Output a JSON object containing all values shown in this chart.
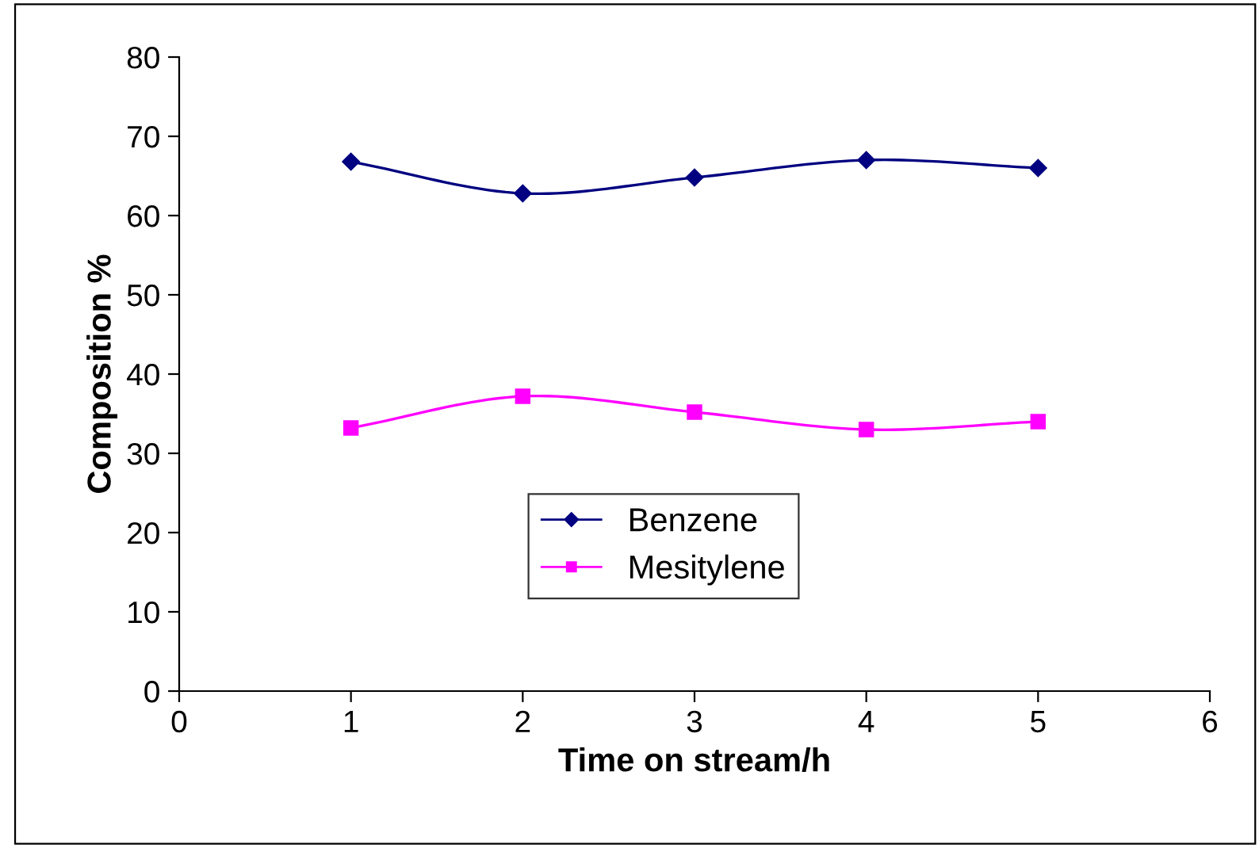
{
  "chart_data": {
    "type": "line",
    "xlabel": "Time on stream/h",
    "ylabel": "Composition %",
    "x": [
      1,
      2,
      3,
      4,
      5
    ],
    "series": [
      {
        "name": "Benzene",
        "color": "#000080",
        "marker": "diamond",
        "values": [
          66.8,
          62.8,
          64.8,
          67,
          66
        ]
      },
      {
        "name": "Mesitylene",
        "color": "#ff00ff",
        "marker": "square",
        "values": [
          33.2,
          37.2,
          35.2,
          33,
          34
        ]
      }
    ],
    "xlim": [
      0,
      6
    ],
    "xticks": [
      0,
      1,
      2,
      3,
      4,
      5,
      6
    ],
    "ylim": [
      0,
      80
    ],
    "yticks": [
      0,
      10,
      20,
      30,
      40,
      50,
      60,
      70,
      80
    ],
    "grid": false,
    "legend": "bottom",
    "line_style": "solid"
  }
}
